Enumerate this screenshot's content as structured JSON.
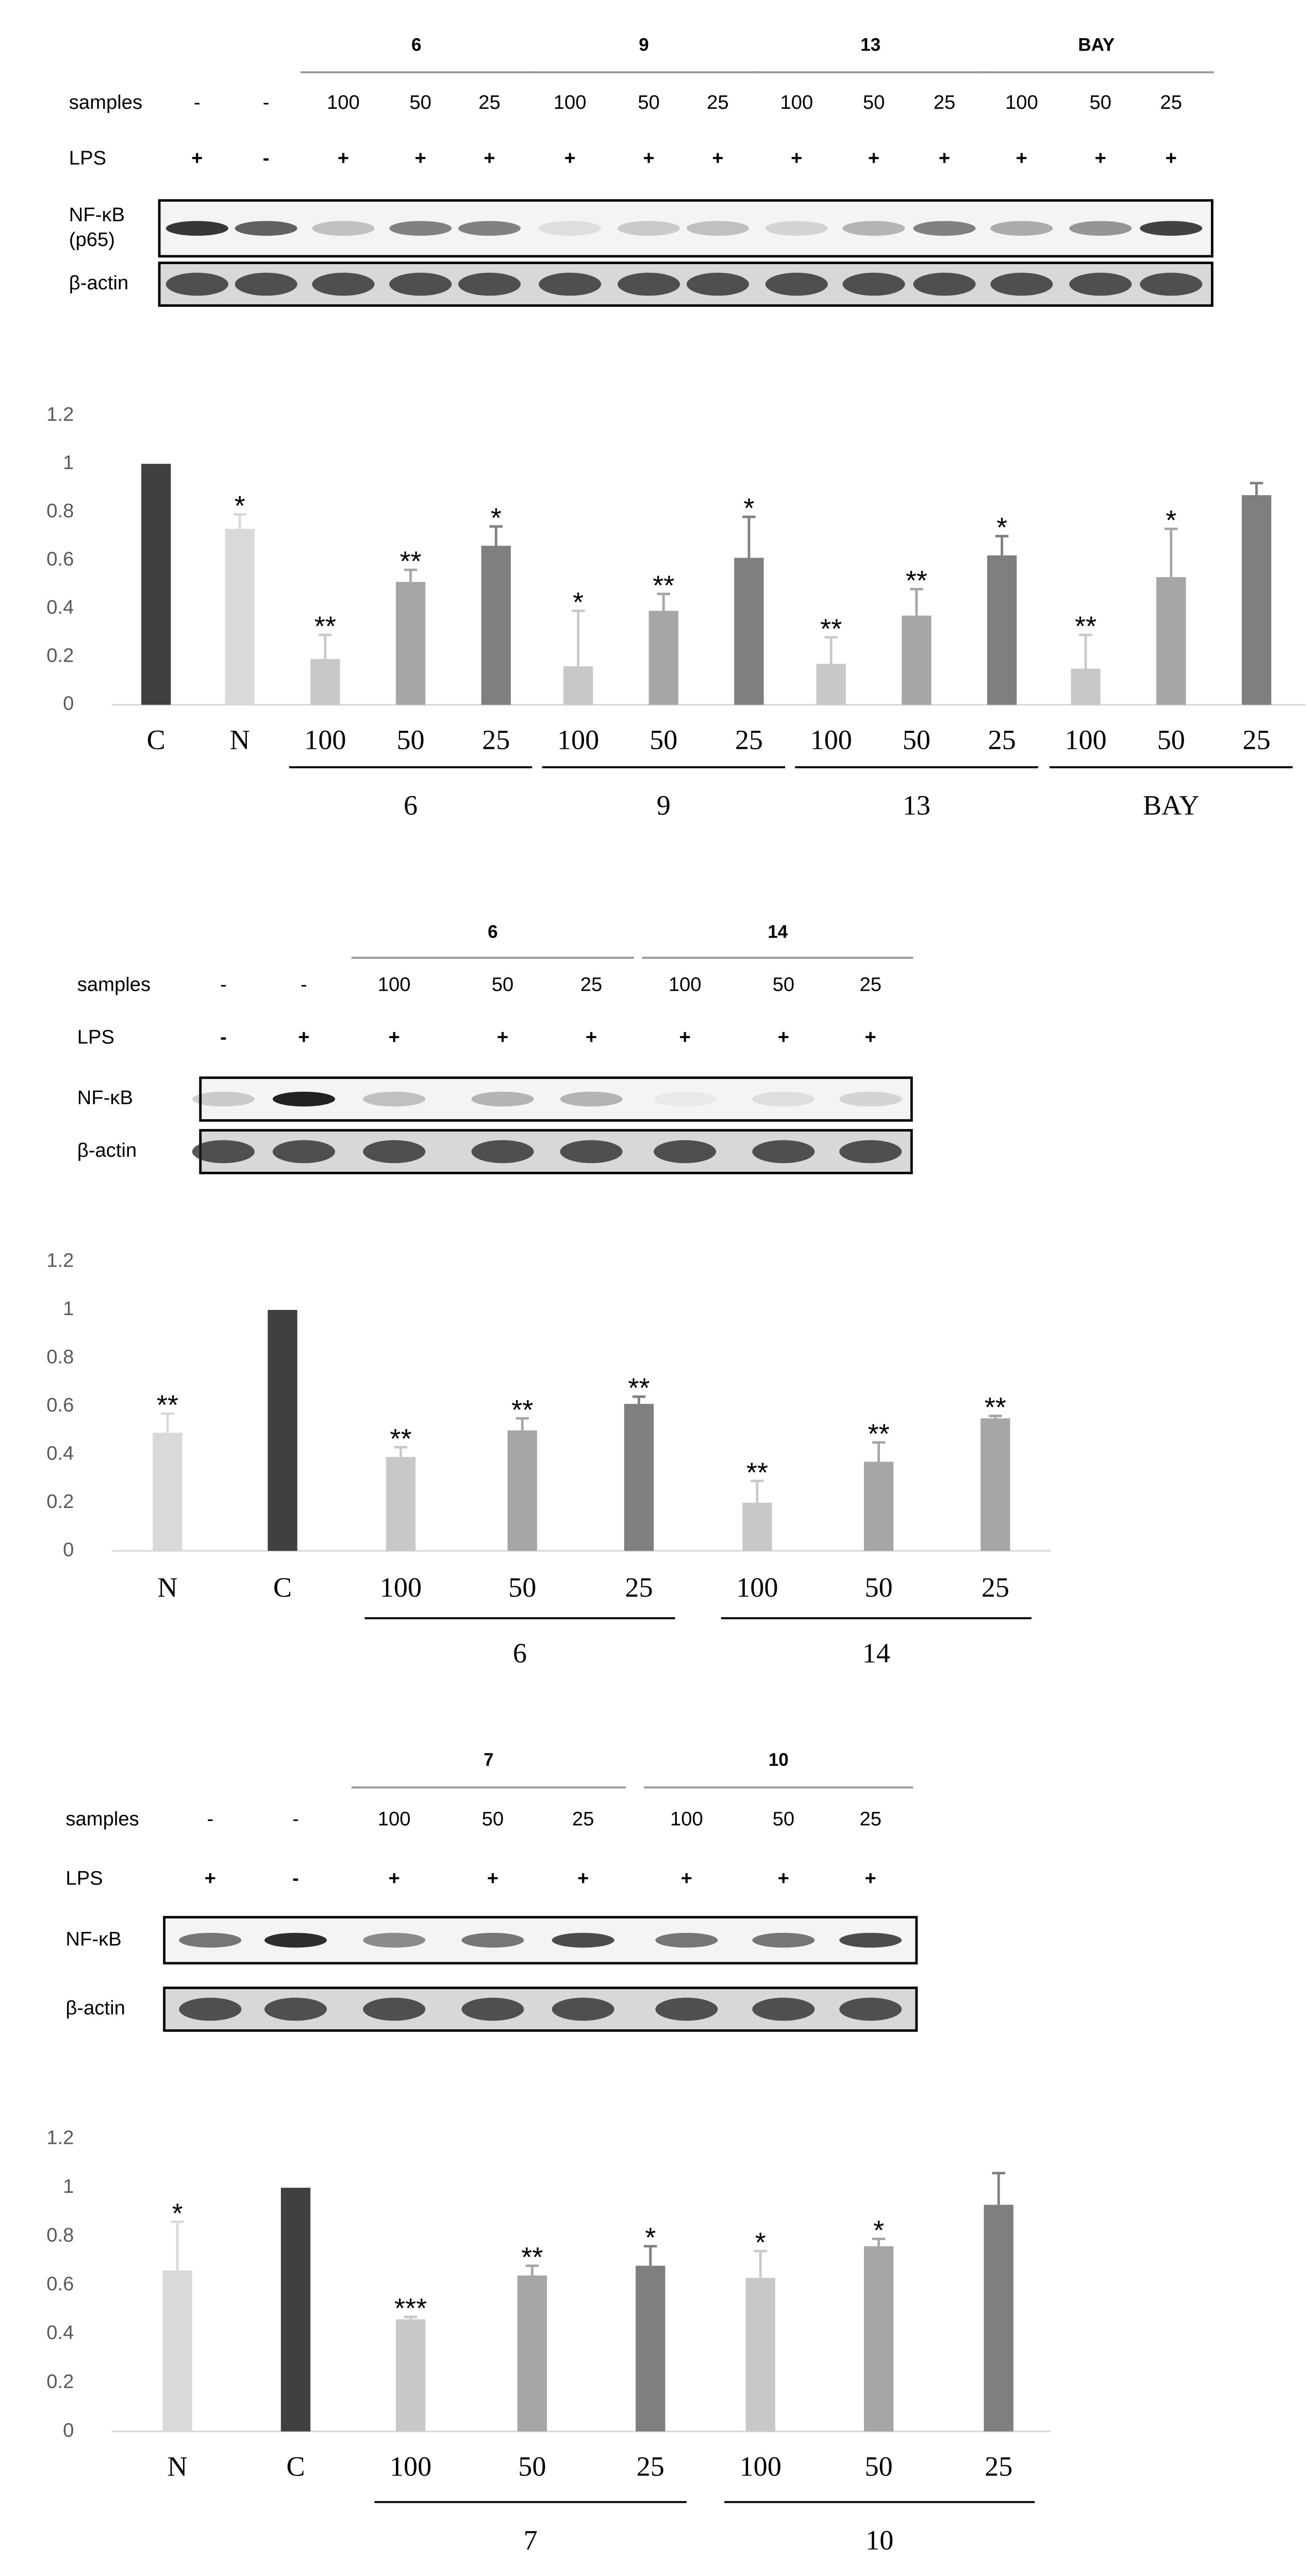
{
  "chart_data": [
    {
      "type": "bar",
      "blot": {
        "row_labels": {
          "samples": "samples",
          "lps": "LPS"
        },
        "groups": [
          {
            "samples": [
              "-",
              "-"
            ],
            "lps": [
              "+",
              "-"
            ]
          },
          {
            "name": "6",
            "samples": [
              "100",
              "50",
              "25"
            ],
            "lps": [
              "+",
              "+",
              "+"
            ]
          },
          {
            "name": "9",
            "samples": [
              "100",
              "50",
              "25"
            ],
            "lps": [
              "+",
              "+",
              "+"
            ]
          },
          {
            "name": "13",
            "samples": [
              "100",
              "50",
              "25"
            ],
            "lps": [
              "+",
              "+",
              "+"
            ]
          },
          {
            "name": "BAY",
            "samples": [
              "100",
              "50",
              "25"
            ],
            "lps": [
              "+",
              "+",
              "+"
            ]
          }
        ],
        "rows": [
          [
            "NF-κB",
            "(p65)"
          ],
          [
            "β-actin"
          ]
        ]
      },
      "ylim": [
        0,
        1.2
      ],
      "yticks": [
        0,
        0.2,
        0.4,
        0.6,
        0.8,
        1,
        1.2
      ],
      "groups": [
        {
          "categories": [
            "C",
            "N"
          ],
          "values": [
            1.0,
            0.73
          ],
          "errors": [
            0,
            0.06
          ],
          "annotations": [
            null,
            "*"
          ],
          "colors": [
            "#404040",
            "#d9d9d9"
          ]
        },
        {
          "name": "6",
          "categories": [
            "100",
            "50",
            "25"
          ],
          "values": [
            0.19,
            0.51,
            0.66
          ],
          "errors": [
            0.1,
            0.05,
            0.08
          ],
          "annotations": [
            "**",
            "**",
            "*"
          ],
          "colors": [
            "#c8c8c8",
            "#a6a6a6",
            "#7f7f7f"
          ]
        },
        {
          "name": "9",
          "categories": [
            "100",
            "50",
            "25"
          ],
          "values": [
            0.16,
            0.39,
            0.61
          ],
          "errors": [
            0.23,
            0.07,
            0.17
          ],
          "annotations": [
            "*",
            "**",
            "*"
          ],
          "colors": [
            "#c8c8c8",
            "#a6a6a6",
            "#7f7f7f"
          ]
        },
        {
          "name": "13",
          "categories": [
            "100",
            "50",
            "25"
          ],
          "values": [
            0.17,
            0.37,
            0.62
          ],
          "errors": [
            0.11,
            0.11,
            0.08
          ],
          "annotations": [
            "**",
            "**",
            "*"
          ],
          "colors": [
            "#c8c8c8",
            "#a6a6a6",
            "#7f7f7f"
          ]
        },
        {
          "name": "BAY",
          "categories": [
            "100",
            "50",
            "25"
          ],
          "values": [
            0.15,
            0.53,
            0.87
          ],
          "errors": [
            0.14,
            0.2,
            0.05
          ],
          "annotations": [
            "**",
            "*",
            null
          ],
          "colors": [
            "#c8c8c8",
            "#a6a6a6",
            "#7f7f7f"
          ]
        }
      ]
    },
    {
      "type": "bar",
      "blot": {
        "row_labels": {
          "samples": "samples",
          "lps": "LPS"
        },
        "groups": [
          {
            "samples": [
              "-",
              "-"
            ],
            "lps": [
              "-",
              "+"
            ]
          },
          {
            "name": "6",
            "samples": [
              "100",
              "50",
              "25"
            ],
            "lps": [
              "+",
              "+",
              "+"
            ]
          },
          {
            "name": "14",
            "samples": [
              "100",
              "50",
              "25"
            ],
            "lps": [
              "+",
              "+",
              "+"
            ]
          }
        ],
        "rows": [
          [
            "NF-κB"
          ],
          [
            "β-actin"
          ]
        ]
      },
      "ylim": [
        0,
        1.2
      ],
      "yticks": [
        0,
        0.2,
        0.4,
        0.6,
        0.8,
        1,
        1.2
      ],
      "groups": [
        {
          "categories": [
            "N",
            "C"
          ],
          "values": [
            0.49,
            1.0
          ],
          "errors": [
            0.08,
            0
          ],
          "annotations": [
            "**",
            null
          ],
          "colors": [
            "#d9d9d9",
            "#404040"
          ]
        },
        {
          "name": "6",
          "categories": [
            "100",
            "50",
            "25"
          ],
          "values": [
            0.39,
            0.5,
            0.61
          ],
          "errors": [
            0.04,
            0.05,
            0.03
          ],
          "annotations": [
            "**",
            "**",
            "**"
          ],
          "colors": [
            "#c8c8c8",
            "#a6a6a6",
            "#7f7f7f"
          ]
        },
        {
          "name": "14",
          "categories": [
            "100",
            "50",
            "25"
          ],
          "values": [
            0.2,
            0.37,
            0.55
          ],
          "errors": [
            0.09,
            0.08,
            0.01
          ],
          "annotations": [
            "**",
            "**",
            "**"
          ],
          "colors": [
            "#c8c8c8",
            "#a6a6a6",
            "#a6a6a6"
          ]
        }
      ]
    },
    {
      "type": "bar",
      "blot": {
        "row_labels": {
          "samples": "samples",
          "lps": "LPS"
        },
        "groups": [
          {
            "samples": [
              "-",
              "-"
            ],
            "lps": [
              "+",
              "-"
            ]
          },
          {
            "name": "7",
            "samples": [
              "100",
              "50",
              "25"
            ],
            "lps": [
              "+",
              "+",
              "+"
            ]
          },
          {
            "name": "10",
            "samples": [
              "100",
              "50",
              "25"
            ],
            "lps": [
              "+",
              "+",
              "+"
            ]
          }
        ],
        "rows": [
          [
            "NF-κB"
          ],
          [
            "β-actin"
          ]
        ]
      },
      "ylim": [
        0,
        1.2
      ],
      "yticks": [
        0,
        0.2,
        0.4,
        0.6,
        0.8,
        1,
        1.2
      ],
      "groups": [
        {
          "categories": [
            "N",
            "C"
          ],
          "values": [
            0.66,
            1.0
          ],
          "errors": [
            0.2,
            0
          ],
          "annotations": [
            "*",
            null
          ],
          "colors": [
            "#d9d9d9",
            "#404040"
          ]
        },
        {
          "name": "7",
          "categories": [
            "100",
            "50",
            "25"
          ],
          "values": [
            0.46,
            0.64,
            0.68
          ],
          "errors": [
            0.01,
            0.04,
            0.08
          ],
          "annotations": [
            "***",
            "**",
            "*"
          ],
          "colors": [
            "#c8c8c8",
            "#a6a6a6",
            "#7f7f7f"
          ]
        },
        {
          "name": "10",
          "categories": [
            "100",
            "50",
            "25"
          ],
          "values": [
            0.63,
            0.76,
            0.93
          ],
          "errors": [
            0.11,
            0.03,
            0.13
          ],
          "annotations": [
            "*",
            "*",
            null
          ],
          "colors": [
            "#c8c8c8",
            "#a6a6a6",
            "#7f7f7f"
          ]
        }
      ]
    }
  ]
}
